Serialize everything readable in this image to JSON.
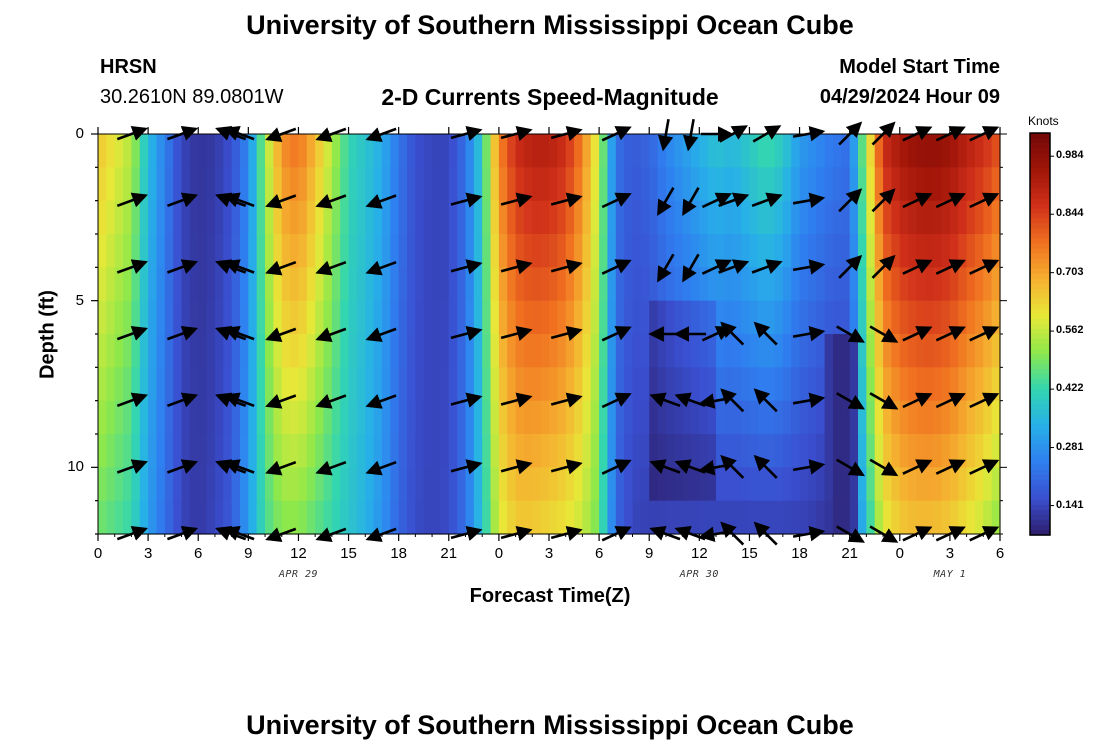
{
  "header": {
    "title": "University of Southern Mississippi Ocean Cube",
    "station": "HRSN",
    "coords": "30.2610N  89.0801W",
    "subtitle": "2-D Currents Speed-Magnitude",
    "model_label": "Model Start Time",
    "model_time": "04/29/2024 Hour 09"
  },
  "footer": {
    "title": "University of Southern Mississippi Ocean Cube"
  },
  "colors": {
    "scale": [
      "#2d1e6b",
      "#3a4fd0",
      "#2f7ff0",
      "#27b0e8",
      "#33d6b0",
      "#8ee84a",
      "#e8e838",
      "#f5b030",
      "#f07020",
      "#d0301a",
      "#a01508",
      "#720808"
    ],
    "arrow": "#000000"
  },
  "chart_data": {
    "type": "heatmap",
    "title": "2-D Currents Speed-Magnitude",
    "xlabel": "Forecast Time(Z)",
    "ylabel": "Depth (ft)",
    "x_tick_labels": [
      "0",
      "3",
      "6",
      "9",
      "12",
      "15",
      "18",
      "21",
      "0",
      "3",
      "6",
      "9",
      "12",
      "15",
      "18",
      "21",
      "0",
      "3",
      "6"
    ],
    "x_range_hours": [
      0,
      54
    ],
    "date_labels": [
      {
        "text": "APR 29",
        "hour": 12
      },
      {
        "text": "APR 30",
        "hour": 36
      },
      {
        "text": "MAY 1",
        "hour": 51
      }
    ],
    "y_ticks": [
      0,
      5,
      10
    ],
    "ylim": [
      0,
      12
    ],
    "colorbar": {
      "unit": "Knots",
      "ticks": [
        "0.984",
        "0.844",
        "0.703",
        "0.562",
        "0.422",
        "0.281",
        "0.141"
      ],
      "range": [
        0.07,
        1.04
      ]
    },
    "speed_profile_knots": {
      "hours": [
        0,
        2,
        3,
        4,
        5,
        6,
        7,
        8,
        9,
        10,
        11,
        12,
        13,
        14,
        15,
        16,
        17,
        18,
        19,
        20,
        21,
        22,
        23,
        24,
        25,
        26,
        27,
        28,
        29,
        30,
        31,
        32,
        33,
        34,
        35,
        36,
        37,
        38,
        39,
        40,
        41,
        42,
        43,
        44,
        45,
        46,
        47,
        48,
        49,
        50,
        51,
        52,
        53,
        54
      ],
      "surface": [
        0.66,
        0.55,
        0.36,
        0.25,
        0.14,
        0.11,
        0.12,
        0.16,
        0.26,
        0.52,
        0.74,
        0.78,
        0.68,
        0.55,
        0.42,
        0.38,
        0.33,
        0.23,
        0.16,
        0.14,
        0.14,
        0.22,
        0.4,
        0.75,
        0.88,
        0.92,
        0.92,
        0.88,
        0.76,
        0.56,
        0.22,
        0.18,
        0.2,
        0.26,
        0.3,
        0.34,
        0.38,
        0.36,
        0.4,
        0.44,
        0.4,
        0.3,
        0.27,
        0.24,
        0.22,
        0.55,
        0.88,
        0.95,
        0.98,
        0.99,
        0.97,
        0.92,
        0.88,
        0.82
      ],
      "bottom": [
        0.48,
        0.42,
        0.3,
        0.22,
        0.14,
        0.12,
        0.14,
        0.18,
        0.3,
        0.44,
        0.5,
        0.5,
        0.46,
        0.42,
        0.38,
        0.34,
        0.28,
        0.2,
        0.15,
        0.14,
        0.15,
        0.22,
        0.38,
        0.58,
        0.64,
        0.64,
        0.62,
        0.6,
        0.56,
        0.48,
        0.2,
        0.14,
        0.13,
        0.13,
        0.13,
        0.13,
        0.13,
        0.13,
        0.13,
        0.13,
        0.13,
        0.13,
        0.12,
        0.1,
        0.13,
        0.38,
        0.58,
        0.64,
        0.66,
        0.66,
        0.64,
        0.6,
        0.56,
        0.5
      ]
    },
    "vectors": {
      "hours": [
        2,
        5,
        8,
        8.5,
        11,
        14,
        17,
        22,
        25,
        28,
        31,
        34,
        35.5,
        37,
        38,
        40,
        42.5,
        45,
        47,
        49,
        51,
        53
      ],
      "depths_ft": [
        0,
        2,
        4,
        6,
        8,
        10,
        12
      ],
      "direction_note": "arrow direction in degrees, math convention (0 = east, 90 = north)"
    }
  }
}
